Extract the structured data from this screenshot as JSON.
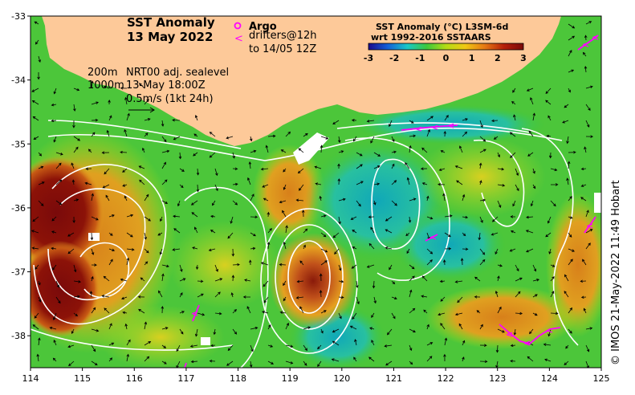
{
  "map": {
    "title_line1": "SST Anomaly",
    "title_line2": "13 May 2022",
    "legend": {
      "argo_label": "Argo",
      "drifter_symbol": "<",
      "drifters_label_line1": "drifters@12h",
      "drifters_label_line2": "to 14/05 12Z"
    },
    "colorbar": {
      "title_line1": "SST Anomaly (°C) L3SM-6d",
      "title_line2": "wrt 1992-2016 SSTAARS",
      "ticks": [
        "-3",
        "-2",
        "-1",
        "0",
        "1",
        "2",
        "3"
      ],
      "range": [
        -3,
        3
      ],
      "colors": [
        "#1a0a8c",
        "#1560d8",
        "#19c8c8",
        "#3cc83c",
        "#b4dc14",
        "#f0c814",
        "#e67814",
        "#b41e0a",
        "#7a0a0a"
      ]
    },
    "info": {
      "depth_line1": "200m",
      "depth_line2": "1000m",
      "source": "NRT00 adj. sealevel",
      "time": "13-May 18:00Z",
      "scale": "0.5m/s (1kt 24h)"
    },
    "x_ticks": [
      "114",
      "115",
      "116",
      "117",
      "118",
      "119",
      "120",
      "121",
      "122",
      "123",
      "124",
      "125"
    ],
    "y_ticks": [
      "-33",
      "-34",
      "-35",
      "-36",
      "-37",
      "-38"
    ],
    "lon_range": [
      114,
      125
    ],
    "lat_range": [
      -38.5,
      -33
    ],
    "credit": "© IMOS 21-May-2022 11:49 Hobart",
    "colors": {
      "land": "#fdc999",
      "ocean_base": "#4cc63a",
      "drifter": "#ff00ff",
      "argo": "#ff00ff",
      "contour": "#ffffff"
    }
  }
}
